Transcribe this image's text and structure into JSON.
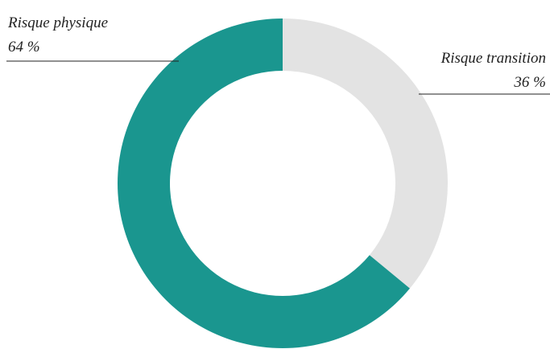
{
  "chart_data": {
    "type": "pie",
    "categories": [
      "Risque transition",
      "Risque physique"
    ],
    "values": [
      36,
      64
    ],
    "value_labels": [
      "36 %",
      "64 %"
    ],
    "colors": [
      "#e3e3e3",
      "#1a968f"
    ]
  }
}
